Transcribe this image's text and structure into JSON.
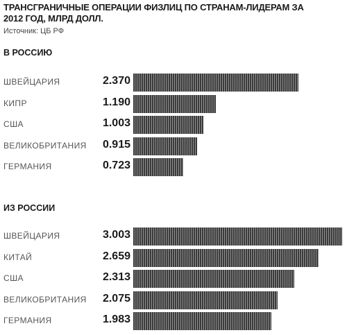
{
  "title": "ТРАНСГРАНИЧНЫЕ ОПЕРАЦИИ ФИЗЛИЦ ПО СТРАНАМ-ЛИДЕРАМ ЗА 2012 ГОД, МЛРД ДОЛЛ.",
  "source": "Источник: ЦБ РФ",
  "chart_data": [
    {
      "type": "bar",
      "orientation": "horizontal",
      "title": "В РОССИЮ",
      "categories": [
        "ШВЕЙЦАРИЯ",
        "КИПР",
        "США",
        "ВЕЛИКОБРИТАНИЯ",
        "ГЕРМАНИЯ"
      ],
      "values": [
        2.37,
        1.19,
        1.003,
        0.915,
        0.723
      ],
      "value_labels": [
        "2.370",
        "1.190",
        "1.003",
        "0.915",
        "0.723"
      ],
      "grid": false,
      "bar_color": "#3a3a3a"
    },
    {
      "type": "bar",
      "orientation": "horizontal",
      "title": "ИЗ РОССИИ",
      "categories": [
        "ШВЕЙЦАРИЯ",
        "КИТАЙ",
        "США",
        "ВЕЛИКОБРИТАНИЯ",
        "ГЕРМАНИЯ"
      ],
      "values": [
        3.003,
        2.659,
        2.313,
        2.075,
        1.983
      ],
      "value_labels": [
        "3.003",
        "2.659",
        "2.313",
        "2.075",
        "1.983"
      ],
      "grid": false,
      "bar_color": "#3a3a3a"
    }
  ]
}
